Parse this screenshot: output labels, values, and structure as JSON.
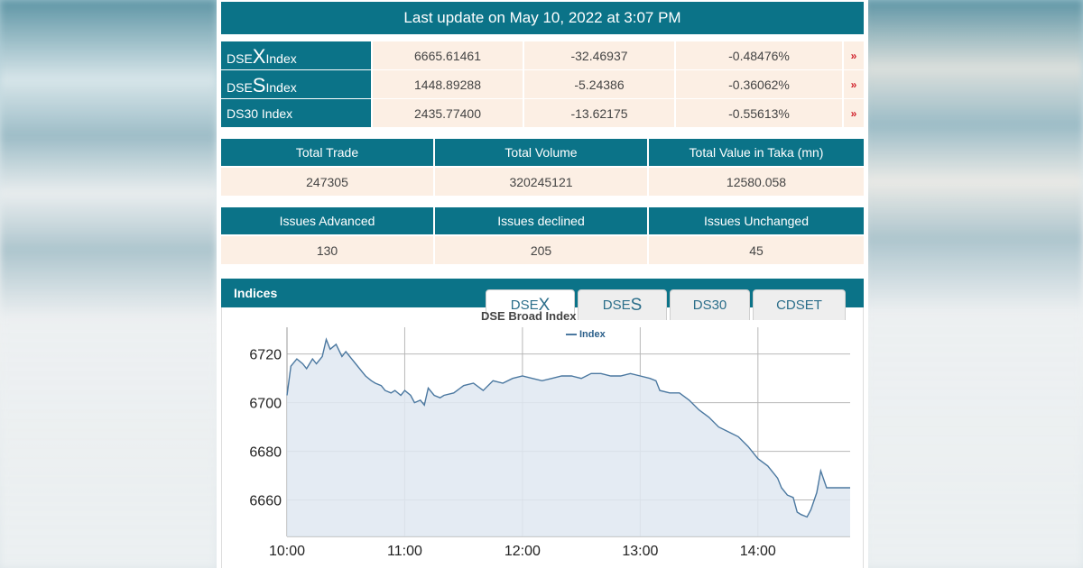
{
  "header": {
    "last_update": "Last update on May 10, 2022 at 3:07 PM"
  },
  "indices": [
    {
      "prefix": "DSE",
      "big": "X",
      "suffix": " Index",
      "value": "6665.61461",
      "change": "-32.46937",
      "percent": "-0.48476%",
      "arrow": "down-arrow"
    },
    {
      "prefix": "DSE",
      "big": "S",
      "suffix": " Index",
      "value": "1448.89288",
      "change": "-5.24386",
      "percent": "-0.36062%",
      "arrow": "down-arrow"
    },
    {
      "prefix": "DS30 Index",
      "big": "",
      "suffix": "",
      "value": "2435.77400",
      "change": "-13.62175",
      "percent": "-0.55613%",
      "arrow": "down-arrow"
    }
  ],
  "trade": {
    "headers": [
      "Total Trade",
      "Total Volume",
      "Total Value in Taka (mn)"
    ],
    "values": [
      "247305",
      "320245121",
      "12580.058"
    ]
  },
  "issues": {
    "headers": [
      "Issues Advanced",
      "Issues declined",
      "Issues Unchanged"
    ],
    "values": [
      "130",
      "205",
      "45"
    ]
  },
  "indices_section": {
    "label": "Indices",
    "tabs": [
      {
        "prefix": "DSE",
        "big": "X",
        "active": true
      },
      {
        "prefix": "DSE",
        "big": "S",
        "active": false
      },
      {
        "prefix": "DS30",
        "big": "",
        "active": false
      },
      {
        "prefix": "CDSET",
        "big": "",
        "active": false
      }
    ]
  },
  "colors": {
    "teal": "#0b7388",
    "cell": "#fcefe4",
    "line": "#4b78a0",
    "fill": "#dfe8f1",
    "down": "#d0202a"
  },
  "chart_data": {
    "type": "area",
    "title": "DSE Broad Index",
    "legend": "Index",
    "legend_position": "top-center",
    "xlabel": "",
    "ylabel": "",
    "x_ticks": [
      "10:00",
      "11:00",
      "12:00",
      "13:00",
      "14:00"
    ],
    "y_ticks": [
      6660,
      6680,
      6700,
      6720
    ],
    "xlim": [
      "10:00",
      "14:47"
    ],
    "ylim": [
      6645,
      6731
    ],
    "grid": true,
    "series": [
      {
        "name": "Index",
        "x": [
          "10:00",
          "10:02",
          "10:05",
          "10:08",
          "10:10",
          "10:13",
          "10:15",
          "10:18",
          "10:20",
          "10:22",
          "10:25",
          "10:28",
          "10:30",
          "10:33",
          "10:35",
          "10:38",
          "10:40",
          "10:43",
          "10:45",
          "10:48",
          "10:50",
          "10:53",
          "10:55",
          "10:58",
          "11:00",
          "11:03",
          "11:05",
          "11:08",
          "11:10",
          "11:12",
          "11:15",
          "11:18",
          "11:20",
          "11:25",
          "11:30",
          "11:35",
          "11:40",
          "11:45",
          "11:50",
          "11:55",
          "12:00",
          "12:05",
          "12:10",
          "12:15",
          "12:20",
          "12:25",
          "12:30",
          "12:35",
          "12:40",
          "12:45",
          "12:50",
          "12:55",
          "13:00",
          "13:05",
          "13:08",
          "13:10",
          "13:15",
          "13:20",
          "13:25",
          "13:30",
          "13:35",
          "13:40",
          "13:45",
          "13:50",
          "13:55",
          "14:00",
          "14:05",
          "14:10",
          "14:12",
          "14:15",
          "14:18",
          "14:20",
          "14:22",
          "14:25",
          "14:27",
          "14:30",
          "14:32",
          "14:35",
          "14:40",
          "14:47"
        ],
        "y": [
          6703,
          6715,
          6718,
          6716,
          6714,
          6718,
          6716,
          6719,
          6726,
          6722,
          6724,
          6719,
          6721,
          6718,
          6716,
          6713,
          6711,
          6709,
          6708,
          6707,
          6705,
          6704,
          6705,
          6703,
          6705,
          6703,
          6700,
          6701,
          6699,
          6706,
          6703,
          6702,
          6703,
          6704,
          6707,
          6708,
          6705,
          6709,
          6708,
          6710,
          6711,
          6710,
          6709,
          6710,
          6711,
          6711,
          6710,
          6712,
          6712,
          6711,
          6711,
          6712,
          6711,
          6710,
          6709,
          6705,
          6704,
          6704,
          6701,
          6697,
          6694,
          6690,
          6688,
          6686,
          6682,
          6677,
          6674,
          6669,
          6665,
          6662,
          6661,
          6655,
          6654,
          6653,
          6656,
          6663,
          6672,
          6665,
          6665,
          6665
        ]
      }
    ]
  }
}
